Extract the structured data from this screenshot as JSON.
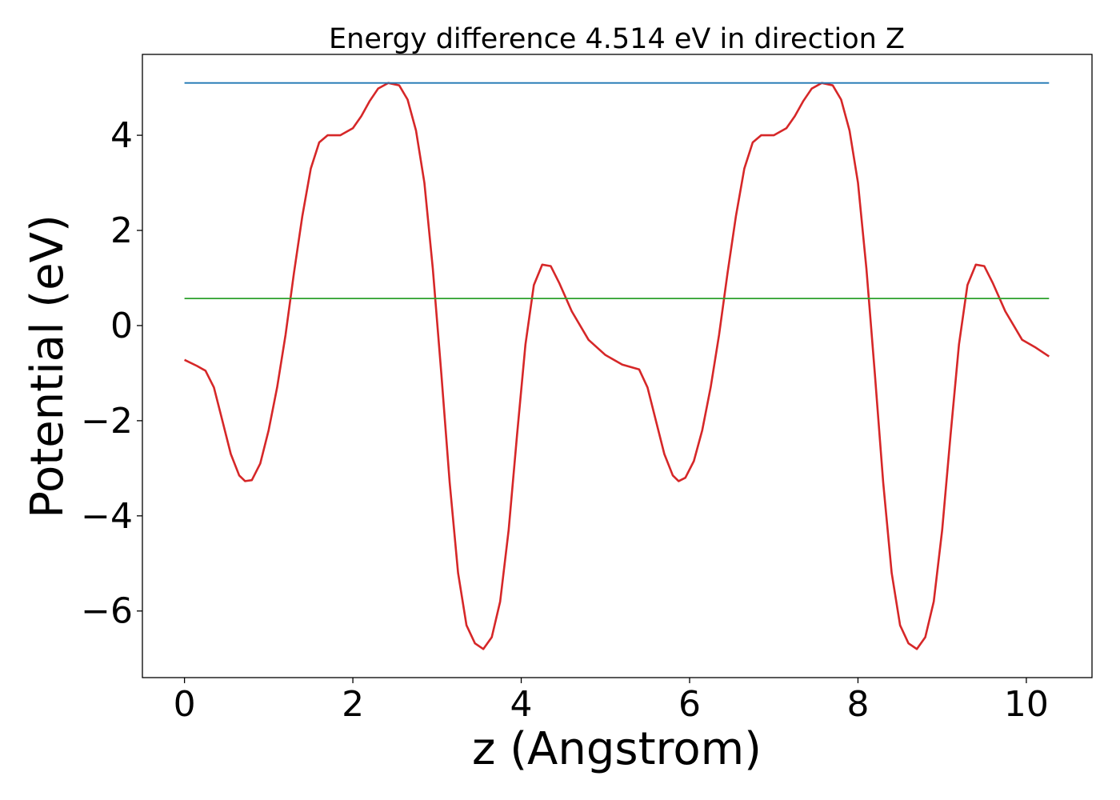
{
  "chart_data": {
    "type": "line",
    "title": "Energy difference 4.514 eV in direction Z",
    "xlabel": "z (Angstrom)",
    "ylabel": "Potential (eV)",
    "xlim": [
      -0.5,
      10.78
    ],
    "ylim": [
      -7.4,
      5.7
    ],
    "xticks": [
      0,
      2,
      4,
      6,
      8,
      10
    ],
    "xtick_labels": [
      "0",
      "2",
      "4",
      "6",
      "8",
      "10"
    ],
    "yticks": [
      -6,
      -4,
      -2,
      0,
      2,
      4
    ],
    "ytick_labels": [
      "−6",
      "−4",
      "−2",
      "0",
      "2",
      "4"
    ],
    "grid": false,
    "series": [
      {
        "color": "#d62728",
        "x": [
          0,
          0.15,
          0.25,
          0.35,
          0.45,
          0.55,
          0.65,
          0.72,
          0.8,
          0.9,
          1.0,
          1.1,
          1.2,
          1.3,
          1.4,
          1.5,
          1.6,
          1.7,
          1.85,
          2.0,
          2.1,
          2.2,
          2.3,
          2.42,
          2.55,
          2.65,
          2.75,
          2.85,
          2.95,
          3.05,
          3.15,
          3.25,
          3.35,
          3.45,
          3.55,
          3.65,
          3.75,
          3.85,
          3.95,
          4.05,
          4.15,
          4.25,
          4.35,
          4.45,
          4.6,
          4.8,
          5.0,
          5.2,
          5.4,
          5.5,
          5.6,
          5.7,
          5.8,
          5.87,
          5.95,
          6.05,
          6.15,
          6.25,
          6.35,
          6.45,
          6.55,
          6.65,
          6.75,
          6.85,
          7.0,
          7.15,
          7.25,
          7.35,
          7.45,
          7.57,
          7.7,
          7.8,
          7.9,
          8.0,
          8.1,
          8.2,
          8.3,
          8.4,
          8.5,
          8.6,
          8.7,
          8.8,
          8.9,
          9.0,
          9.1,
          9.2,
          9.3,
          9.4,
          9.5,
          9.6,
          9.75,
          9.95,
          10.1,
          10.27
        ],
        "y": [
          -0.72,
          -0.85,
          -0.95,
          -1.3,
          -2.0,
          -2.7,
          -3.15,
          -3.27,
          -3.25,
          -2.9,
          -2.2,
          -1.3,
          -0.2,
          1.1,
          2.3,
          3.3,
          3.85,
          4.0,
          4.0,
          4.15,
          4.4,
          4.72,
          4.98,
          5.1,
          5.05,
          4.75,
          4.1,
          3.0,
          1.2,
          -1.0,
          -3.3,
          -5.2,
          -6.3,
          -6.68,
          -6.8,
          -6.55,
          -5.8,
          -4.3,
          -2.3,
          -0.4,
          0.85,
          1.28,
          1.25,
          0.9,
          0.3,
          -0.3,
          -0.62,
          -0.82,
          -0.92,
          -1.3,
          -2.0,
          -2.7,
          -3.15,
          -3.27,
          -3.2,
          -2.85,
          -2.2,
          -1.3,
          -0.2,
          1.1,
          2.3,
          3.3,
          3.85,
          4.0,
          4.0,
          4.15,
          4.4,
          4.72,
          4.98,
          5.1,
          5.05,
          4.75,
          4.1,
          3.0,
          1.2,
          -1.0,
          -3.3,
          -5.2,
          -6.3,
          -6.68,
          -6.8,
          -6.55,
          -5.8,
          -4.3,
          -2.3,
          -0.4,
          0.85,
          1.28,
          1.25,
          0.9,
          0.3,
          -0.3,
          -0.45,
          -0.65
        ]
      },
      {
        "color": "#1f77b4",
        "x": [
          0,
          10.27
        ],
        "y": [
          5.1,
          5.1
        ]
      },
      {
        "color": "#2ca02c",
        "x": [
          0,
          10.27
        ],
        "y": [
          0.57,
          0.57
        ]
      }
    ]
  }
}
